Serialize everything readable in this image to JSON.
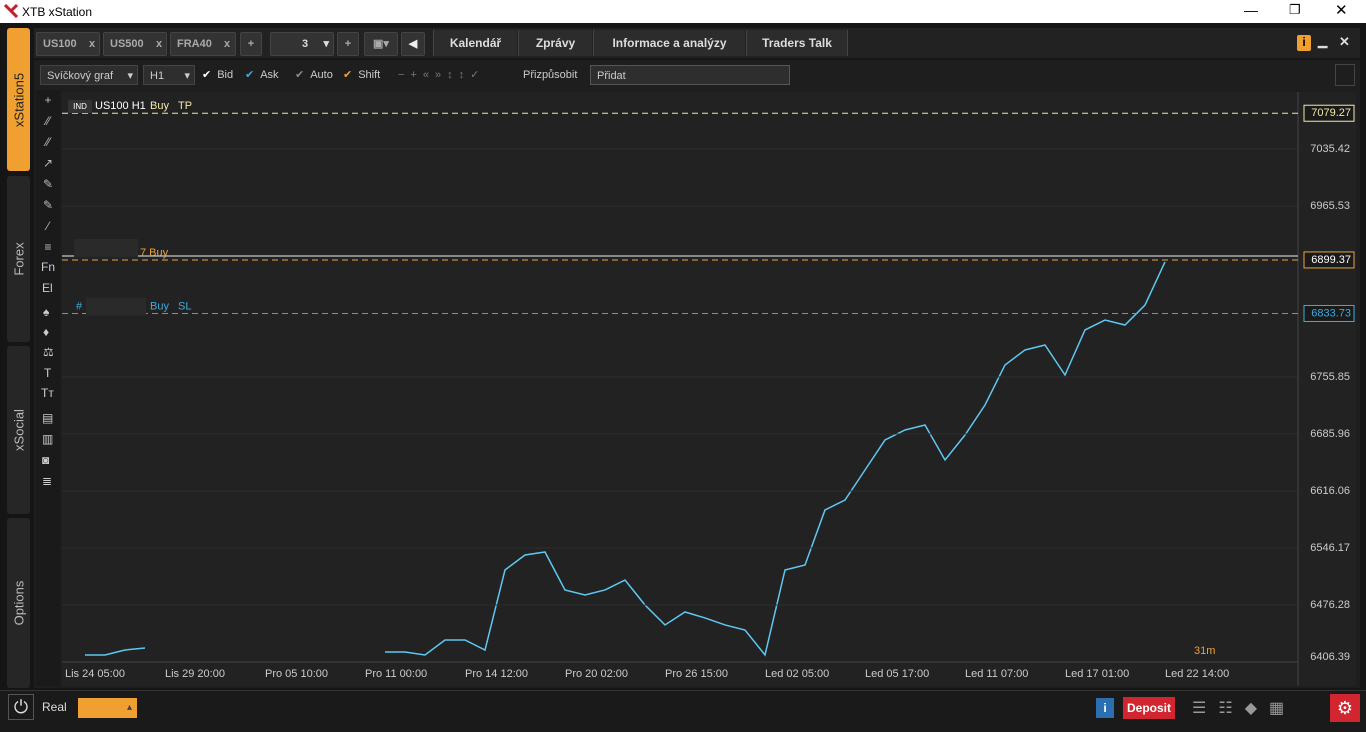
{
  "window": {
    "title": "XTB xStation"
  },
  "sidebar": [
    "xStation5",
    "Forex",
    "xSocial",
    "Options"
  ],
  "tabs": {
    "instruments": [
      "US100",
      "US500",
      "FRA40"
    ],
    "close": "x",
    "layout_count": "3",
    "menu": [
      "Kalendář",
      "Zprávy",
      "Informace a analýzy",
      "Traders Talk"
    ]
  },
  "toolbar": {
    "chart_type": "Svíčkový graf",
    "interval": "H1",
    "options": [
      {
        "label": "Bid",
        "color": "#ffffff"
      },
      {
        "label": "Ask",
        "color": "#3fa9dd"
      },
      {
        "label": "Auto",
        "color": "#888888"
      },
      {
        "label": "Shift",
        "color": "#f0a030"
      }
    ],
    "fit": "Přizpůsobit",
    "add": "Přidat"
  },
  "tools": [
    "Fn",
    "El",
    "T",
    "Tт"
  ],
  "chart_data": {
    "type": "line",
    "symbol_badge": "IND",
    "symbol": "US100 H1",
    "timer": "31m",
    "color": "#5ec8f2",
    "categories": [
      null,
      null,
      null,
      null,
      null,
      "Lis 29 20:00",
      null,
      null,
      null,
      null,
      "Pro 05 10:00",
      null,
      null,
      null,
      null,
      "Pro 11 00:00",
      null,
      null,
      null,
      null,
      "Pro 14 12:00",
      null,
      null,
      null,
      null,
      "Pro 20 02:00",
      null,
      null,
      null,
      null,
      "Pro 26 15:00",
      null,
      null,
      null,
      null,
      "Led 02 05:00",
      null,
      null,
      null,
      null,
      "Led 05 17:00",
      null,
      null,
      null,
      null,
      "Led 11 07:00",
      null,
      null,
      null,
      null,
      "Led 17 01:00",
      null,
      null,
      null,
      null,
      "Led 22 14:00"
    ],
    "first_label": "Lis 24 05:00",
    "values": [
      null,
      6415.0,
      6415.0,
      6421.1,
      6423.6,
      null,
      null,
      null,
      null,
      null,
      null,
      null,
      null,
      null,
      null,
      null,
      6418.7,
      6418.7,
      6415.0,
      6433.4,
      6433.4,
      6421.1,
      6519.2,
      6537.6,
      6541.3,
      6494.7,
      6488.6,
      6494.7,
      6506.9,
      6476.3,
      6451.8,
      6467.7,
      6460.4,
      6451.8,
      6445.6,
      6415.0,
      6519.2,
      6525.3,
      6592.8,
      6605.0,
      6641.8,
      6678.6,
      6690.9,
      6697.0,
      6654.1,
      6684.7,
      6721.5,
      6770.6,
      6789.0,
      6795.1,
      6758.3,
      6813.5,
      6825.7,
      6819.6,
      6844.1,
      6896.9
    ],
    "ylim": [
      6406.39,
      7105.3
    ],
    "yticks": [
      7035.42,
      6965.53,
      6755.85,
      6685.96,
      6616.06,
      6546.17,
      6476.28,
      6406.39
    ],
    "grid": true,
    "levels": [
      {
        "name": "Buy",
        "tag": "TP",
        "value": 7079.27,
        "color": "#f2eaa8"
      },
      {
        "name": "7 Buy",
        "value": 6899.37,
        "color": "#e8a33d"
      },
      {
        "prefix": "#",
        "name": "Buy",
        "tag": "SL",
        "value": 6833.73,
        "color": "#3fa9dd"
      }
    ]
  },
  "footer": {
    "account": "Real",
    "deposit": "Deposit"
  }
}
